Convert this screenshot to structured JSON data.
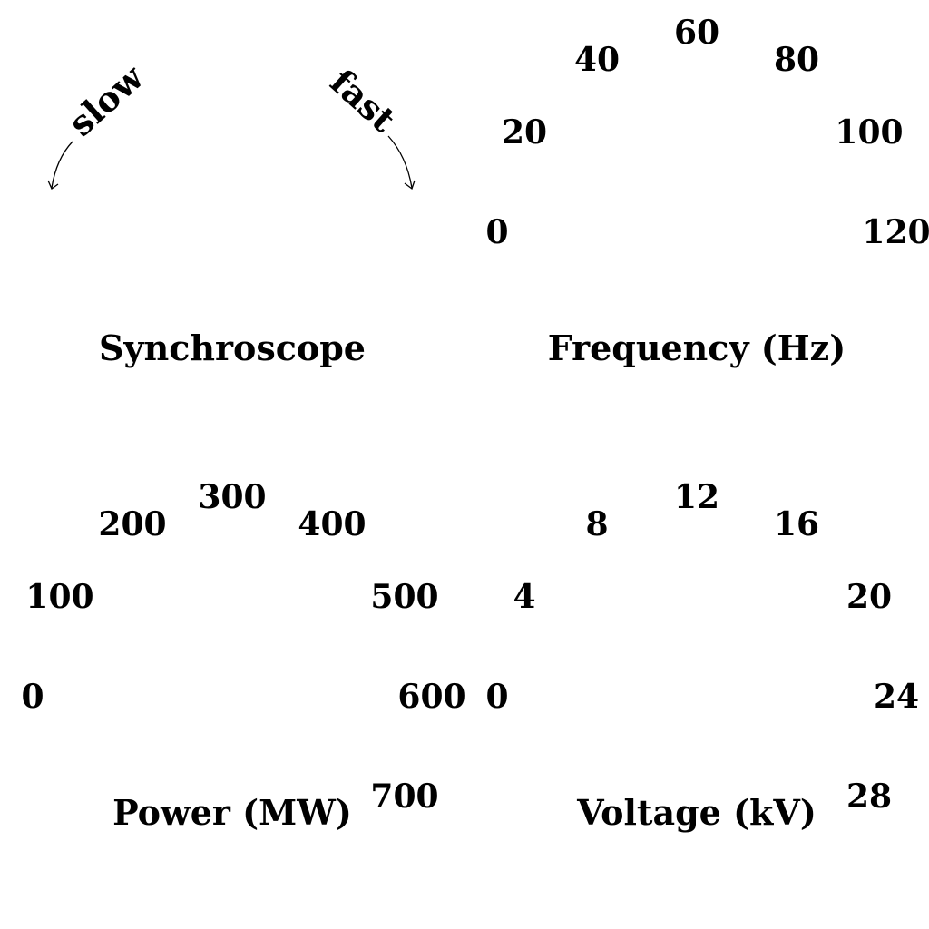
{
  "synchroscope": {
    "title": "Synchroscope",
    "slow_label": "slow",
    "fast_label": "fast"
  },
  "frequency": {
    "title": "Frequency (Hz)",
    "ticks": [
      "0",
      "20",
      "40",
      "60",
      "80",
      "100",
      "120"
    ]
  },
  "power": {
    "title": "Power (MW)",
    "ticks": [
      "0",
      "100",
      "200",
      "300",
      "400",
      "500",
      "600",
      "700"
    ]
  },
  "voltage": {
    "title": "Voltage (kV)",
    "ticks": [
      "0",
      "4",
      "8",
      "12",
      "16",
      "20",
      "24",
      "28"
    ]
  }
}
